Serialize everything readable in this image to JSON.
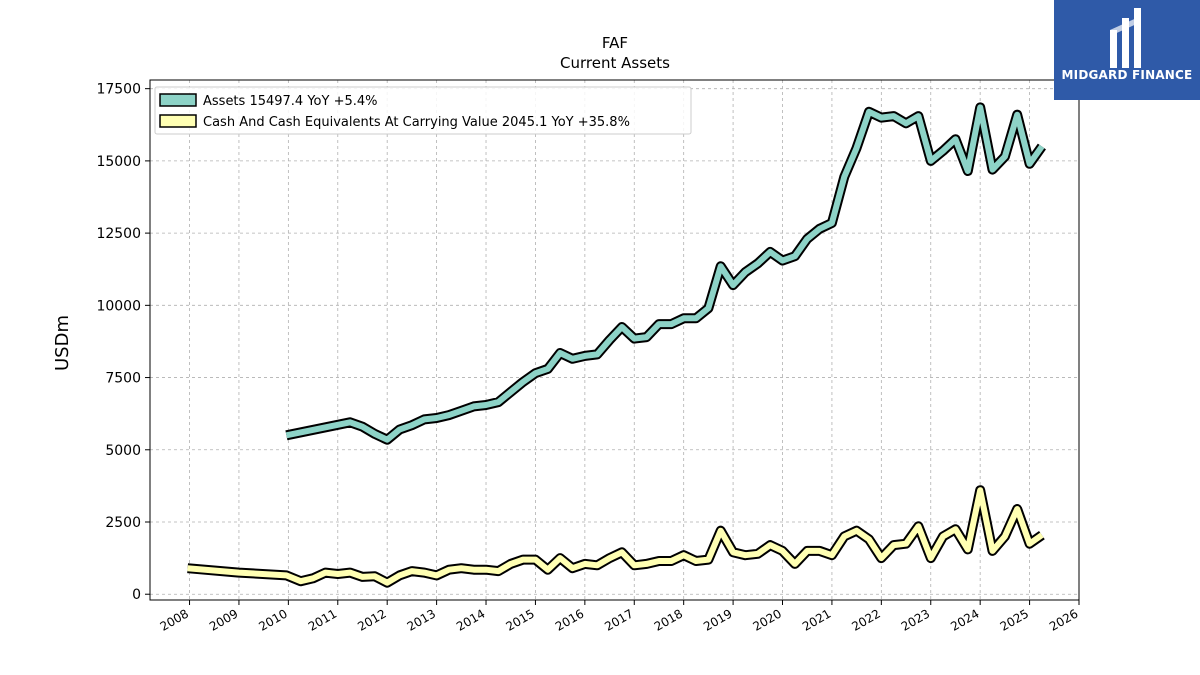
{
  "brand": {
    "name": "MIDGARD FINANCE",
    "bg_color": "#2f5aa8"
  },
  "chart_data": {
    "type": "line",
    "title": "FAF",
    "subtitle": "Current  Assets",
    "xlabel": "",
    "ylabel": "USDm",
    "xlim": [
      2007.2,
      2026.0
    ],
    "ylim": [
      -200,
      17800
    ],
    "x_ticks": [
      "2008",
      "2009",
      "2010",
      "2011",
      "2012",
      "2013",
      "2014",
      "2015",
      "2016",
      "2017",
      "2018",
      "2019",
      "2020",
      "2021",
      "2022",
      "2023",
      "2024",
      "2025",
      "2026"
    ],
    "y_ticks": [
      "0",
      "2500",
      "5000",
      "7500",
      "10000",
      "12500",
      "15000",
      "17500"
    ],
    "grid": true,
    "legend_position": "top-left",
    "series": [
      {
        "name": "Assets",
        "legend": "Assets  15497.4 YoY +5.4%",
        "color": "#8dd3c7",
        "points": [
          [
            2009.96,
            5500
          ],
          [
            2011.25,
            5950
          ],
          [
            2011.5,
            5800
          ],
          [
            2011.75,
            5550
          ],
          [
            2012.0,
            5350
          ],
          [
            2012.25,
            5700
          ],
          [
            2012.5,
            5850
          ],
          [
            2012.75,
            6050
          ],
          [
            2013.0,
            6100
          ],
          [
            2013.25,
            6200
          ],
          [
            2013.5,
            6350
          ],
          [
            2013.75,
            6500
          ],
          [
            2014.0,
            6550
          ],
          [
            2014.25,
            6650
          ],
          [
            2014.5,
            7000
          ],
          [
            2014.75,
            7350
          ],
          [
            2015.0,
            7650
          ],
          [
            2015.25,
            7800
          ],
          [
            2015.5,
            8350
          ],
          [
            2015.75,
            8150
          ],
          [
            2016.0,
            8250
          ],
          [
            2016.25,
            8300
          ],
          [
            2016.5,
            8800
          ],
          [
            2016.75,
            9250
          ],
          [
            2017.0,
            8850
          ],
          [
            2017.25,
            8900
          ],
          [
            2017.5,
            9350
          ],
          [
            2017.75,
            9350
          ],
          [
            2018.0,
            9550
          ],
          [
            2018.25,
            9550
          ],
          [
            2018.5,
            9900
          ],
          [
            2018.75,
            11350
          ],
          [
            2019.0,
            10700
          ],
          [
            2019.25,
            11150
          ],
          [
            2019.5,
            11450
          ],
          [
            2019.75,
            11850
          ],
          [
            2020.0,
            11550
          ],
          [
            2020.25,
            11700
          ],
          [
            2020.5,
            12300
          ],
          [
            2020.75,
            12650
          ],
          [
            2021.0,
            12850
          ],
          [
            2021.25,
            14450
          ],
          [
            2021.5,
            15450
          ],
          [
            2021.75,
            16700
          ],
          [
            2022.0,
            16500
          ],
          [
            2022.25,
            16550
          ],
          [
            2022.5,
            16300
          ],
          [
            2022.75,
            16550
          ],
          [
            2023.0,
            15000
          ],
          [
            2023.25,
            15350
          ],
          [
            2023.5,
            15750
          ],
          [
            2023.75,
            14650
          ],
          [
            2024.0,
            16850
          ],
          [
            2024.25,
            14700
          ],
          [
            2024.5,
            15150
          ],
          [
            2024.75,
            16600
          ],
          [
            2025.0,
            14900
          ],
          [
            2025.25,
            15497.4
          ]
        ]
      },
      {
        "name": "Cash And Cash Equivalents At Carrying Value",
        "legend": "Cash And Cash Equivalents At Carrying Value  2045.1 YoY +35.8%",
        "color": "#ffffb3",
        "points": [
          [
            2007.96,
            900
          ],
          [
            2009.0,
            750
          ],
          [
            2009.96,
            650
          ],
          [
            2010.25,
            450
          ],
          [
            2010.5,
            550
          ],
          [
            2010.75,
            750
          ],
          [
            2011.0,
            700
          ],
          [
            2011.25,
            750
          ],
          [
            2011.5,
            600
          ],
          [
            2011.75,
            620
          ],
          [
            2012.0,
            400
          ],
          [
            2012.25,
            650
          ],
          [
            2012.5,
            800
          ],
          [
            2012.75,
            750
          ],
          [
            2013.0,
            650
          ],
          [
            2013.25,
            850
          ],
          [
            2013.5,
            900
          ],
          [
            2013.75,
            850
          ],
          [
            2014.0,
            850
          ],
          [
            2014.25,
            800
          ],
          [
            2014.5,
            1050
          ],
          [
            2014.75,
            1200
          ],
          [
            2015.0,
            1200
          ],
          [
            2015.25,
            850
          ],
          [
            2015.5,
            1250
          ],
          [
            2015.75,
            900
          ],
          [
            2016.0,
            1050
          ],
          [
            2016.25,
            1000
          ],
          [
            2016.5,
            1250
          ],
          [
            2016.75,
            1450
          ],
          [
            2017.0,
            1000
          ],
          [
            2017.25,
            1050
          ],
          [
            2017.5,
            1150
          ],
          [
            2017.75,
            1150
          ],
          [
            2018.0,
            1350
          ],
          [
            2018.25,
            1150
          ],
          [
            2018.5,
            1200
          ],
          [
            2018.75,
            2200
          ],
          [
            2019.0,
            1450
          ],
          [
            2019.25,
            1350
          ],
          [
            2019.5,
            1400
          ],
          [
            2019.75,
            1700
          ],
          [
            2020.0,
            1500
          ],
          [
            2020.25,
            1050
          ],
          [
            2020.5,
            1500
          ],
          [
            2020.75,
            1500
          ],
          [
            2021.0,
            1350
          ],
          [
            2021.25,
            2000
          ],
          [
            2021.5,
            2200
          ],
          [
            2021.75,
            1900
          ],
          [
            2022.0,
            1250
          ],
          [
            2022.25,
            1700
          ],
          [
            2022.5,
            1750
          ],
          [
            2022.75,
            2350
          ],
          [
            2023.0,
            1250
          ],
          [
            2023.25,
            2000
          ],
          [
            2023.5,
            2250
          ],
          [
            2023.75,
            1550
          ],
          [
            2024.0,
            3600
          ],
          [
            2024.25,
            1500
          ],
          [
            2024.5,
            2000
          ],
          [
            2024.75,
            2950
          ],
          [
            2025.0,
            1750
          ],
          [
            2025.25,
            2045.1
          ]
        ]
      }
    ]
  }
}
